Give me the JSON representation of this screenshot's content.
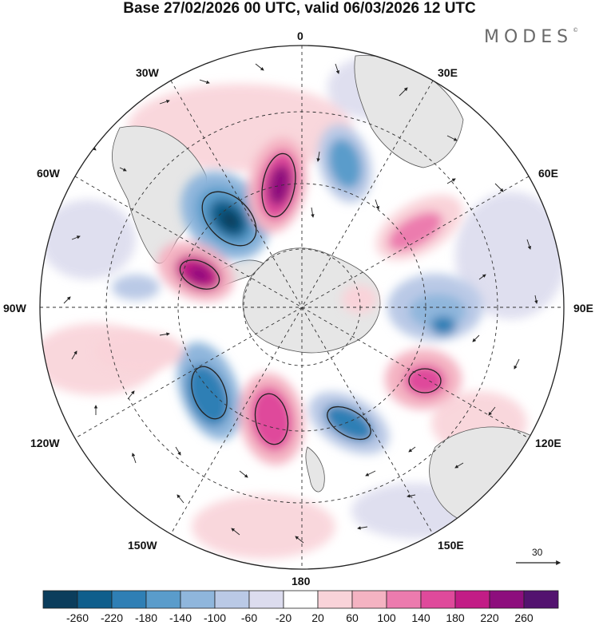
{
  "title": "Base 27/02/2026 00 UTC, valid 06/03/2026 12 UTC",
  "brand": {
    "name": "MODES",
    "mark": "©"
  },
  "longitude_labels": {
    "lon_0": "0",
    "lon_30e": "30E",
    "lon_60e": "60E",
    "lon_90e": "90E",
    "lon_120e": "120E",
    "lon_150e": "150E",
    "lon_180": "180",
    "lon_150w": "150W",
    "lon_120w": "120W",
    "lon_90w": "90W",
    "lon_60w": "60W",
    "lon_30w": "30W"
  },
  "vector_reference": {
    "value": "30"
  },
  "colorbar": {
    "colors": [
      "#0b3d5c",
      "#0f5e8c",
      "#2f7fb5",
      "#5a9ccb",
      "#8fb6dc",
      "#bac9e6",
      "#dcdcee",
      "#ffffff",
      "#f9d3d9",
      "#f4b3c2",
      "#ec7bae",
      "#df4a9b",
      "#c21d86",
      "#8d0e7d",
      "#53136f"
    ],
    "tick_labels": [
      "-260",
      "-220",
      "-180",
      "-140",
      "-100",
      "-60",
      "-20",
      "20",
      "60",
      "100",
      "140",
      "180",
      "220",
      "260"
    ]
  },
  "map_features": {
    "land_color": "#e6e6e6",
    "coast_color": "#555555",
    "grid_color": "#333333"
  }
}
